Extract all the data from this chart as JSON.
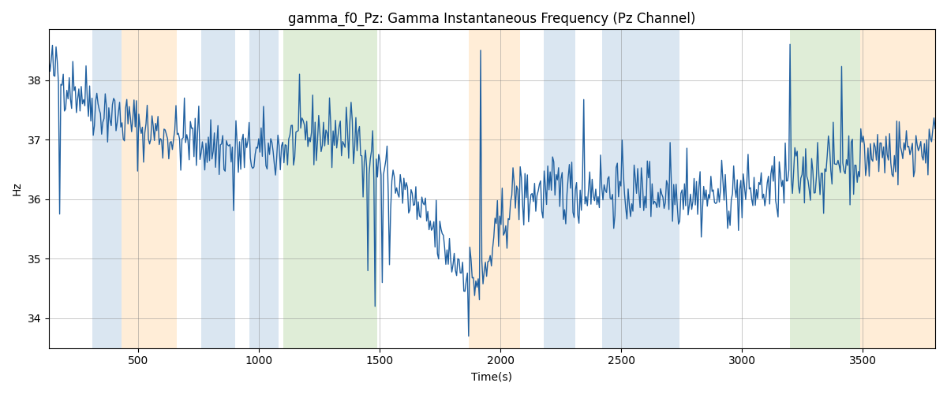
{
  "title": "gamma_f0_Pz: Gamma Instantaneous Frequency (Pz Channel)",
  "xlabel": "Time(s)",
  "ylabel": "Hz",
  "xlim": [
    130,
    3800
  ],
  "ylim": [
    33.5,
    38.85
  ],
  "line_color": "#2060a0",
  "line_width": 1.0,
  "figsize": [
    12,
    5
  ],
  "dpi": 100,
  "bands": [
    {
      "xmin": 310,
      "xmax": 430,
      "color": "#adc8e0",
      "alpha": 0.45
    },
    {
      "xmin": 430,
      "xmax": 660,
      "color": "#ffd9a8",
      "alpha": 0.45
    },
    {
      "xmin": 760,
      "xmax": 900,
      "color": "#adc8e0",
      "alpha": 0.45
    },
    {
      "xmin": 960,
      "xmax": 1080,
      "color": "#adc8e0",
      "alpha": 0.45
    },
    {
      "xmin": 1100,
      "xmax": 1490,
      "color": "#b8d9a8",
      "alpha": 0.45
    },
    {
      "xmin": 1870,
      "xmax": 2080,
      "color": "#ffd9a8",
      "alpha": 0.45
    },
    {
      "xmin": 2180,
      "xmax": 2310,
      "color": "#adc8e0",
      "alpha": 0.45
    },
    {
      "xmin": 2420,
      "xmax": 2740,
      "color": "#adc8e0",
      "alpha": 0.45
    },
    {
      "xmin": 3200,
      "xmax": 3490,
      "color": "#b8d9a8",
      "alpha": 0.45
    },
    {
      "xmin": 3490,
      "xmax": 3800,
      "color": "#ffd9a8",
      "alpha": 0.45
    }
  ],
  "seed": 42,
  "n_points": 740
}
